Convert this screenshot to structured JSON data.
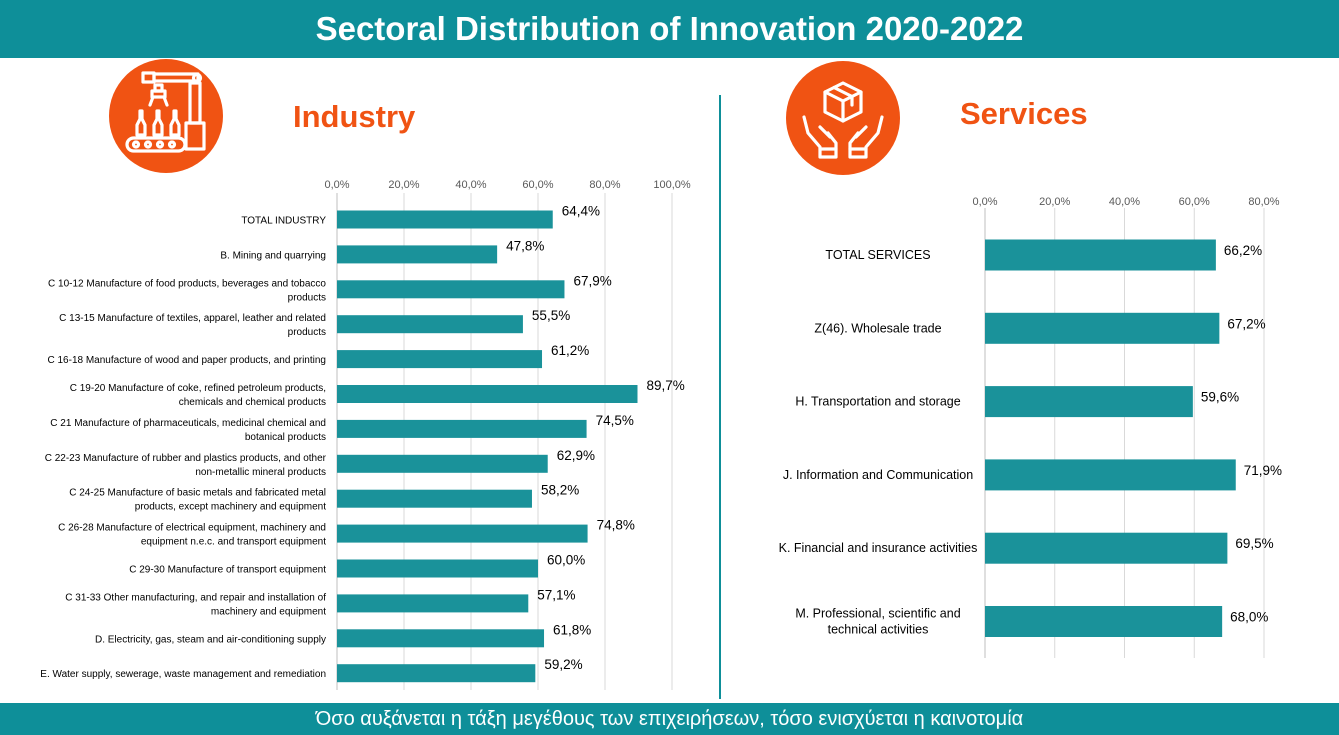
{
  "title": "Sectoral Distribution of Innovation 2020-2022",
  "footer": "Όσο αυξάνεται η τάξη μεγέθους των επιχειρήσεων, τόσο ενισχύεται η καινοτομία",
  "industry_heading": "Industry",
  "services_heading": "Services",
  "colors": {
    "teal": "#0e8f99",
    "orange": "#f05313",
    "bar": "#1a929a"
  },
  "icons": {
    "industry": "robot-arm-assembly-line-icon",
    "services": "hands-holding-box-icon"
  },
  "chart_data": [
    {
      "type": "bar",
      "orientation": "horizontal",
      "categories": [
        [
          "TOTAL INDUSTRY"
        ],
        [
          "B. Mining and quarrying"
        ],
        [
          "C 10-12 Manufacture of food products, beverages and tobacco",
          "products"
        ],
        [
          "C 13-15 Manufacture of textiles, apparel, leather and related",
          "products"
        ],
        [
          "C 16-18 Manufacture of wood and paper products, and printing"
        ],
        [
          "C 19-20 Manufacture of coke, refined petroleum products,",
          "chemicals and chemical products"
        ],
        [
          "C 21 Manufacture of pharmaceuticals, medicinal chemical and",
          "botanical products"
        ],
        [
          "C 22-23 Manufacture of rubber and plastics products, and other",
          "non-metallic mineral products"
        ],
        [
          "C 24-25 Manufacture of basic metals and fabricated metal",
          "products, except machinery and equipment"
        ],
        [
          "C 26-28 Manufacture of electrical equipment, machinery and",
          "equipment n.e.c. and transport equipment"
        ],
        [
          "C 29-30 Manufacture of transport equipment"
        ],
        [
          "C 31-33 Other manufacturing, and repair and installation of",
          "machinery and equipment"
        ],
        [
          "D.  Electricity, gas, steam and air-conditioning supply"
        ],
        [
          "E. Water supply, sewerage, waste management and remediation"
        ]
      ],
      "values": [
        64.4,
        47.8,
        67.9,
        55.5,
        61.2,
        89.7,
        74.5,
        62.9,
        58.2,
        74.8,
        60.0,
        57.1,
        61.8,
        59.2
      ],
      "data_labels": [
        "64,4%",
        "47,8%",
        "67,9%",
        "55,5%",
        "61,2%",
        "89,7%",
        "74,5%",
        "62,9%",
        "58,2%",
        "74,8%",
        "60,0%",
        "57,1%",
        "61,8%",
        "59,2%"
      ],
      "xlim": [
        0,
        100
      ],
      "tick_values": [
        0,
        20,
        40,
        60,
        80,
        100
      ],
      "tick_labels": [
        "0,0%",
        "20,0%",
        "40,0%",
        "60,0%",
        "80,0%",
        "100,0%"
      ],
      "axis_position": "top",
      "grid": true,
      "legend": "none"
    },
    {
      "type": "bar",
      "orientation": "horizontal",
      "categories": [
        [
          "TOTAL SERVICES"
        ],
        [
          "Z(46).  Wholesale trade"
        ],
        [
          "H. Transportation and storage"
        ],
        [
          "J. Information and Communication"
        ],
        [
          "K.  Financial and insurance activities"
        ],
        [
          "M. Professional, scientific and",
          "technical activities"
        ]
      ],
      "values": [
        66.2,
        67.2,
        59.6,
        71.9,
        69.5,
        68.0
      ],
      "data_labels": [
        "66,2%",
        "67,2%",
        "59,6%",
        "71,9%",
        "69,5%",
        "68,0%"
      ],
      "xlim": [
        0,
        80
      ],
      "tick_values": [
        0,
        20,
        40,
        60,
        80
      ],
      "tick_labels": [
        "0,0%",
        "20,0%",
        "40,0%",
        "60,0%",
        "80,0%"
      ],
      "axis_position": "top",
      "grid": true,
      "legend": "none"
    }
  ]
}
